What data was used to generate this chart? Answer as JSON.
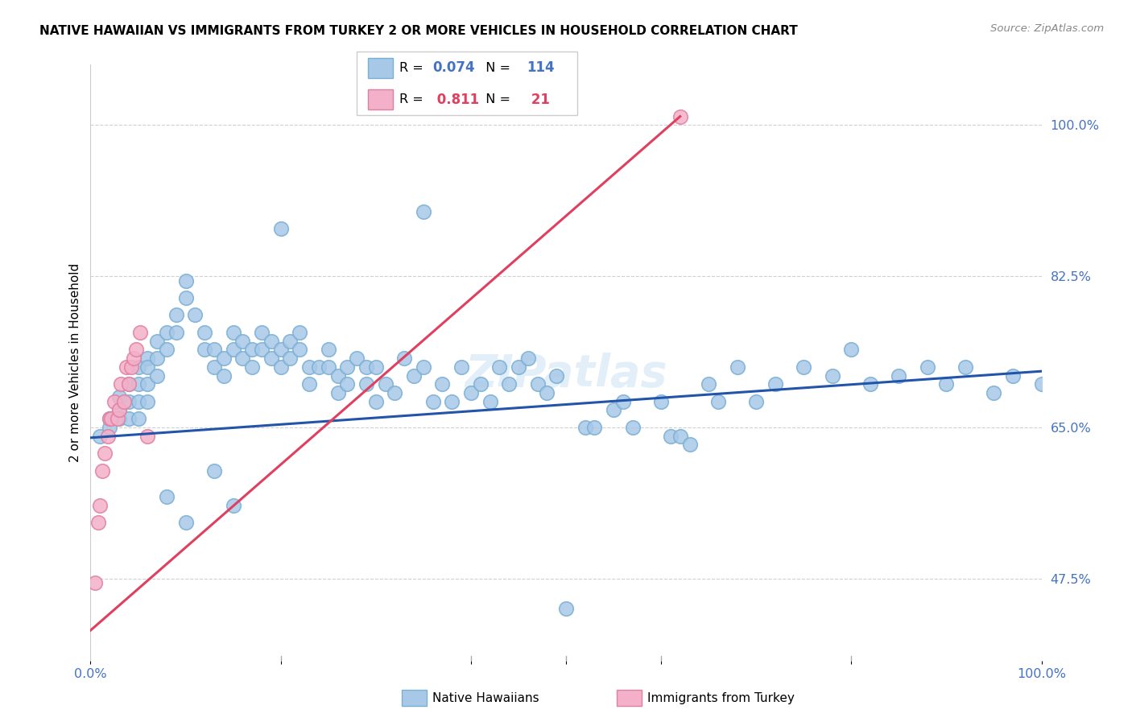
{
  "title": "NATIVE HAWAIIAN VS IMMIGRANTS FROM TURKEY 2 OR MORE VEHICLES IN HOUSEHOLD CORRELATION CHART",
  "source": "Source: ZipAtlas.com",
  "ylabel_label": "2 or more Vehicles in Household",
  "ytick_vals": [
    0.475,
    0.65,
    0.825,
    1.0
  ],
  "ytick_labels": [
    "47.5%",
    "65.0%",
    "82.5%",
    "100.0%"
  ],
  "blue_color": "#a8c8e8",
  "blue_edge_color": "#7aafd4",
  "pink_color": "#f4b0c8",
  "pink_edge_color": "#e080a0",
  "blue_line_color": "#2255aa",
  "pink_line_color": "#e04060",
  "watermark": "ZIPatlas",
  "blue_R": 0.074,
  "blue_N": 114,
  "pink_R": 0.811,
  "pink_N": 21,
  "xlim": [
    0.0,
    1.0
  ],
  "ylim": [
    0.38,
    1.07
  ],
  "blue_x": [
    0.01,
    0.02,
    0.02,
    0.03,
    0.03,
    0.03,
    0.04,
    0.04,
    0.04,
    0.05,
    0.05,
    0.05,
    0.05,
    0.06,
    0.06,
    0.06,
    0.06,
    0.07,
    0.07,
    0.07,
    0.08,
    0.08,
    0.09,
    0.09,
    0.1,
    0.1,
    0.11,
    0.12,
    0.12,
    0.13,
    0.13,
    0.14,
    0.14,
    0.15,
    0.15,
    0.16,
    0.16,
    0.17,
    0.17,
    0.18,
    0.18,
    0.19,
    0.19,
    0.2,
    0.2,
    0.21,
    0.21,
    0.22,
    0.22,
    0.23,
    0.23,
    0.24,
    0.25,
    0.25,
    0.26,
    0.26,
    0.27,
    0.27,
    0.28,
    0.29,
    0.29,
    0.3,
    0.3,
    0.31,
    0.32,
    0.33,
    0.34,
    0.35,
    0.36,
    0.37,
    0.38,
    0.39,
    0.4,
    0.41,
    0.42,
    0.43,
    0.44,
    0.45,
    0.46,
    0.47,
    0.48,
    0.49,
    0.5,
    0.52,
    0.53,
    0.55,
    0.56,
    0.57,
    0.6,
    0.61,
    0.62,
    0.63,
    0.65,
    0.66,
    0.68,
    0.7,
    0.72,
    0.75,
    0.78,
    0.8,
    0.82,
    0.85,
    0.88,
    0.9,
    0.92,
    0.95,
    0.97,
    1.0,
    0.08,
    0.1,
    0.13,
    0.15,
    0.2,
    0.35
  ],
  "blue_y": [
    0.64,
    0.66,
    0.65,
    0.67,
    0.685,
    0.66,
    0.7,
    0.68,
    0.66,
    0.72,
    0.7,
    0.68,
    0.66,
    0.73,
    0.72,
    0.7,
    0.68,
    0.75,
    0.73,
    0.71,
    0.76,
    0.74,
    0.78,
    0.76,
    0.82,
    0.8,
    0.78,
    0.76,
    0.74,
    0.72,
    0.74,
    0.73,
    0.71,
    0.76,
    0.74,
    0.75,
    0.73,
    0.74,
    0.72,
    0.76,
    0.74,
    0.75,
    0.73,
    0.74,
    0.72,
    0.75,
    0.73,
    0.76,
    0.74,
    0.72,
    0.7,
    0.72,
    0.74,
    0.72,
    0.71,
    0.69,
    0.72,
    0.7,
    0.73,
    0.72,
    0.7,
    0.72,
    0.68,
    0.7,
    0.69,
    0.73,
    0.71,
    0.72,
    0.68,
    0.7,
    0.68,
    0.72,
    0.69,
    0.7,
    0.68,
    0.72,
    0.7,
    0.72,
    0.73,
    0.7,
    0.69,
    0.71,
    0.44,
    0.65,
    0.65,
    0.67,
    0.68,
    0.65,
    0.68,
    0.64,
    0.64,
    0.63,
    0.7,
    0.68,
    0.72,
    0.68,
    0.7,
    0.72,
    0.71,
    0.74,
    0.7,
    0.71,
    0.72,
    0.7,
    0.72,
    0.69,
    0.71,
    0.7,
    0.57,
    0.54,
    0.6,
    0.56,
    0.88,
    0.9
  ],
  "pink_x": [
    0.005,
    0.008,
    0.01,
    0.012,
    0.015,
    0.018,
    0.02,
    0.022,
    0.025,
    0.028,
    0.03,
    0.032,
    0.035,
    0.038,
    0.04,
    0.043,
    0.045,
    0.048,
    0.052,
    0.06,
    0.62
  ],
  "pink_y": [
    0.47,
    0.54,
    0.56,
    0.6,
    0.62,
    0.64,
    0.66,
    0.66,
    0.68,
    0.66,
    0.67,
    0.7,
    0.68,
    0.72,
    0.7,
    0.72,
    0.73,
    0.74,
    0.76,
    0.64,
    1.01
  ],
  "blue_line_x": [
    0.0,
    1.0
  ],
  "blue_line_y": [
    0.638,
    0.715
  ],
  "pink_line_x": [
    0.0,
    0.62
  ],
  "pink_line_y": [
    0.415,
    1.01
  ]
}
